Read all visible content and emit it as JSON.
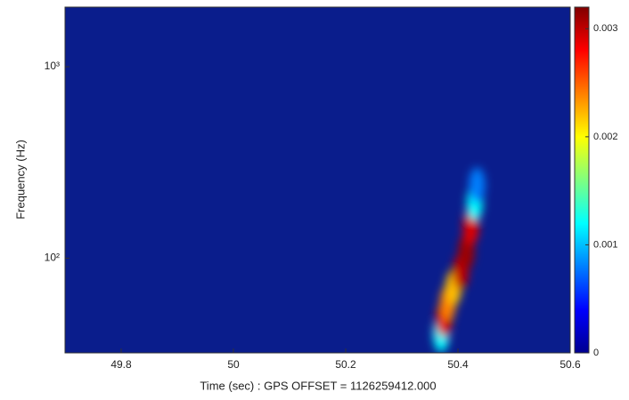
{
  "chart_data": {
    "type": "spectrogram",
    "x_label": "Time (sec) : GPS OFFSET = 1126259412.000",
    "y_label": "Frequency (Hz)",
    "xlim": [
      49.7,
      50.6
    ],
    "xticks": [
      49.8,
      50,
      50.2,
      50.4,
      50.6
    ],
    "ylim": [
      32,
      2048
    ],
    "y_scale": "log",
    "yticks": [
      {
        "value": 100,
        "label": "10²"
      },
      {
        "value": 1000,
        "label": "10³"
      }
    ],
    "colorlim": [
      0,
      0.0032
    ],
    "colorticks": [
      0,
      0.001,
      0.002,
      0.003
    ],
    "colormap": "jet",
    "x": [
      50.37,
      50.375,
      50.382,
      50.392,
      50.405,
      50.415,
      50.423,
      50.43,
      50.434
    ],
    "y": [
      40,
      48,
      58,
      70,
      85,
      108,
      145,
      195,
      240
    ],
    "values": [
      0.0012,
      0.0029,
      0.0024,
      0.0022,
      0.003,
      0.0031,
      0.0029,
      0.0012,
      0.0008
    ]
  }
}
